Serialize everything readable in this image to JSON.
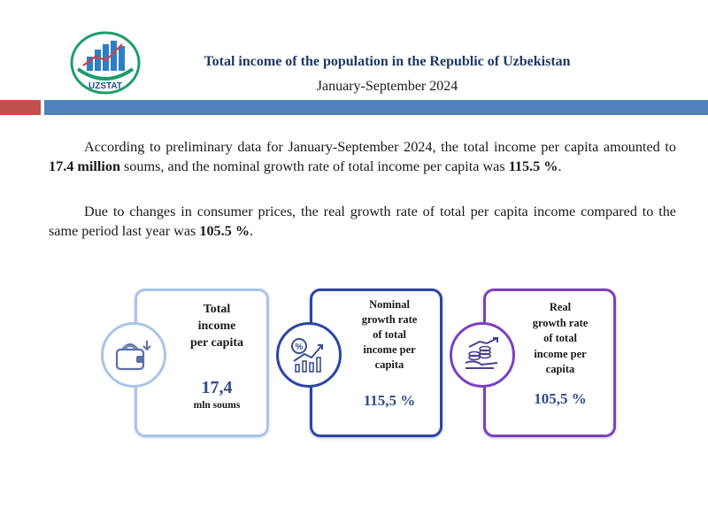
{
  "header": {
    "logo_text": "UZSTAT",
    "title": "Total income of the population in the Republic of Uzbekistan",
    "period": "January-September 2024"
  },
  "intro": {
    "p1_a": "According to preliminary data for January-September 2024, the total income per capita amounted to ",
    "p1_b": "17.4 million",
    "p1_c": " soums, and the nominal growth rate of total income per capita was ",
    "p1_d": "115.5 %",
    "p1_e": ".",
    "p2_a": "Due to changes in consumer prices, the real growth rate of total per capita income compared to the same period last year was ",
    "p2_b": "105.5 %",
    "p2_c": "."
  },
  "cards": [
    {
      "label_lines": [
        "Total",
        "income",
        "per capita"
      ],
      "value": "17,4",
      "unit": "mln  soums",
      "icon": "wallet-icon",
      "color": "#a9c4ea"
    },
    {
      "label_lines": [
        "Nominal",
        "growth rate",
        "of total",
        "income per",
        "capita"
      ],
      "value": "115,5 %",
      "icon": "percent-growth-icon",
      "color": "#2a45a6"
    },
    {
      "label_lines": [
        "Real",
        "growth rate",
        "of total",
        "income per",
        "capita"
      ],
      "value": "105,5 %",
      "icon": "coins-growth-icon",
      "color": "#7d3fc2"
    }
  ],
  "colors": {
    "title": "#1f3864",
    "bar_red": "#c0504d",
    "bar_blue": "#4f81bd"
  }
}
